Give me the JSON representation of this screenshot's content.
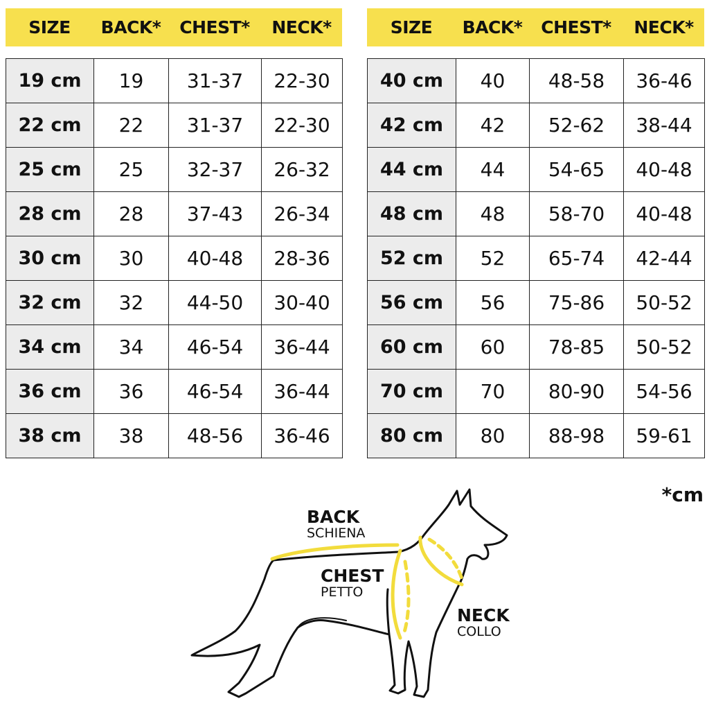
{
  "headers": [
    "SIZE",
    "BACK*",
    "CHEST*",
    "NECK*"
  ],
  "left_table": [
    [
      "19 cm",
      "19",
      "31-37",
      "22-30"
    ],
    [
      "22 cm",
      "22",
      "31-37",
      "22-30"
    ],
    [
      "25 cm",
      "25",
      "32-37",
      "26-32"
    ],
    [
      "28 cm",
      "28",
      "37-43",
      "26-34"
    ],
    [
      "30 cm",
      "30",
      "40-48",
      "28-36"
    ],
    [
      "32 cm",
      "32",
      "44-50",
      "30-40"
    ],
    [
      "34 cm",
      "34",
      "46-54",
      "36-44"
    ],
    [
      "36 cm",
      "36",
      "46-54",
      "36-44"
    ],
    [
      "38 cm",
      "38",
      "48-56",
      "36-46"
    ]
  ],
  "right_table": [
    [
      "40 cm",
      "40",
      "48-58",
      "36-46"
    ],
    [
      "42 cm",
      "42",
      "52-62",
      "38-44"
    ],
    [
      "44 cm",
      "44",
      "54-65",
      "40-48"
    ],
    [
      "48 cm",
      "48",
      "58-70",
      "40-48"
    ],
    [
      "52 cm",
      "52",
      "65-74",
      "42-44"
    ],
    [
      "56 cm",
      "56",
      "75-86",
      "50-52"
    ],
    [
      "60 cm",
      "60",
      "78-85",
      "50-52"
    ],
    [
      "70 cm",
      "70",
      "80-90",
      "54-56"
    ],
    [
      "80 cm",
      "80",
      "88-98",
      "59-61"
    ]
  ],
  "unit_note": "*cm",
  "diagram": {
    "back": {
      "title": "BACK",
      "subtitle": "SCHIENA"
    },
    "chest": {
      "title": "CHEST",
      "subtitle": "PETTO"
    },
    "neck": {
      "title": "NECK",
      "subtitle": "COLLO"
    }
  },
  "colors": {
    "accent": "#f7e04e",
    "size_cell": "#ececec",
    "measure_line": "#f2dc3c"
  }
}
